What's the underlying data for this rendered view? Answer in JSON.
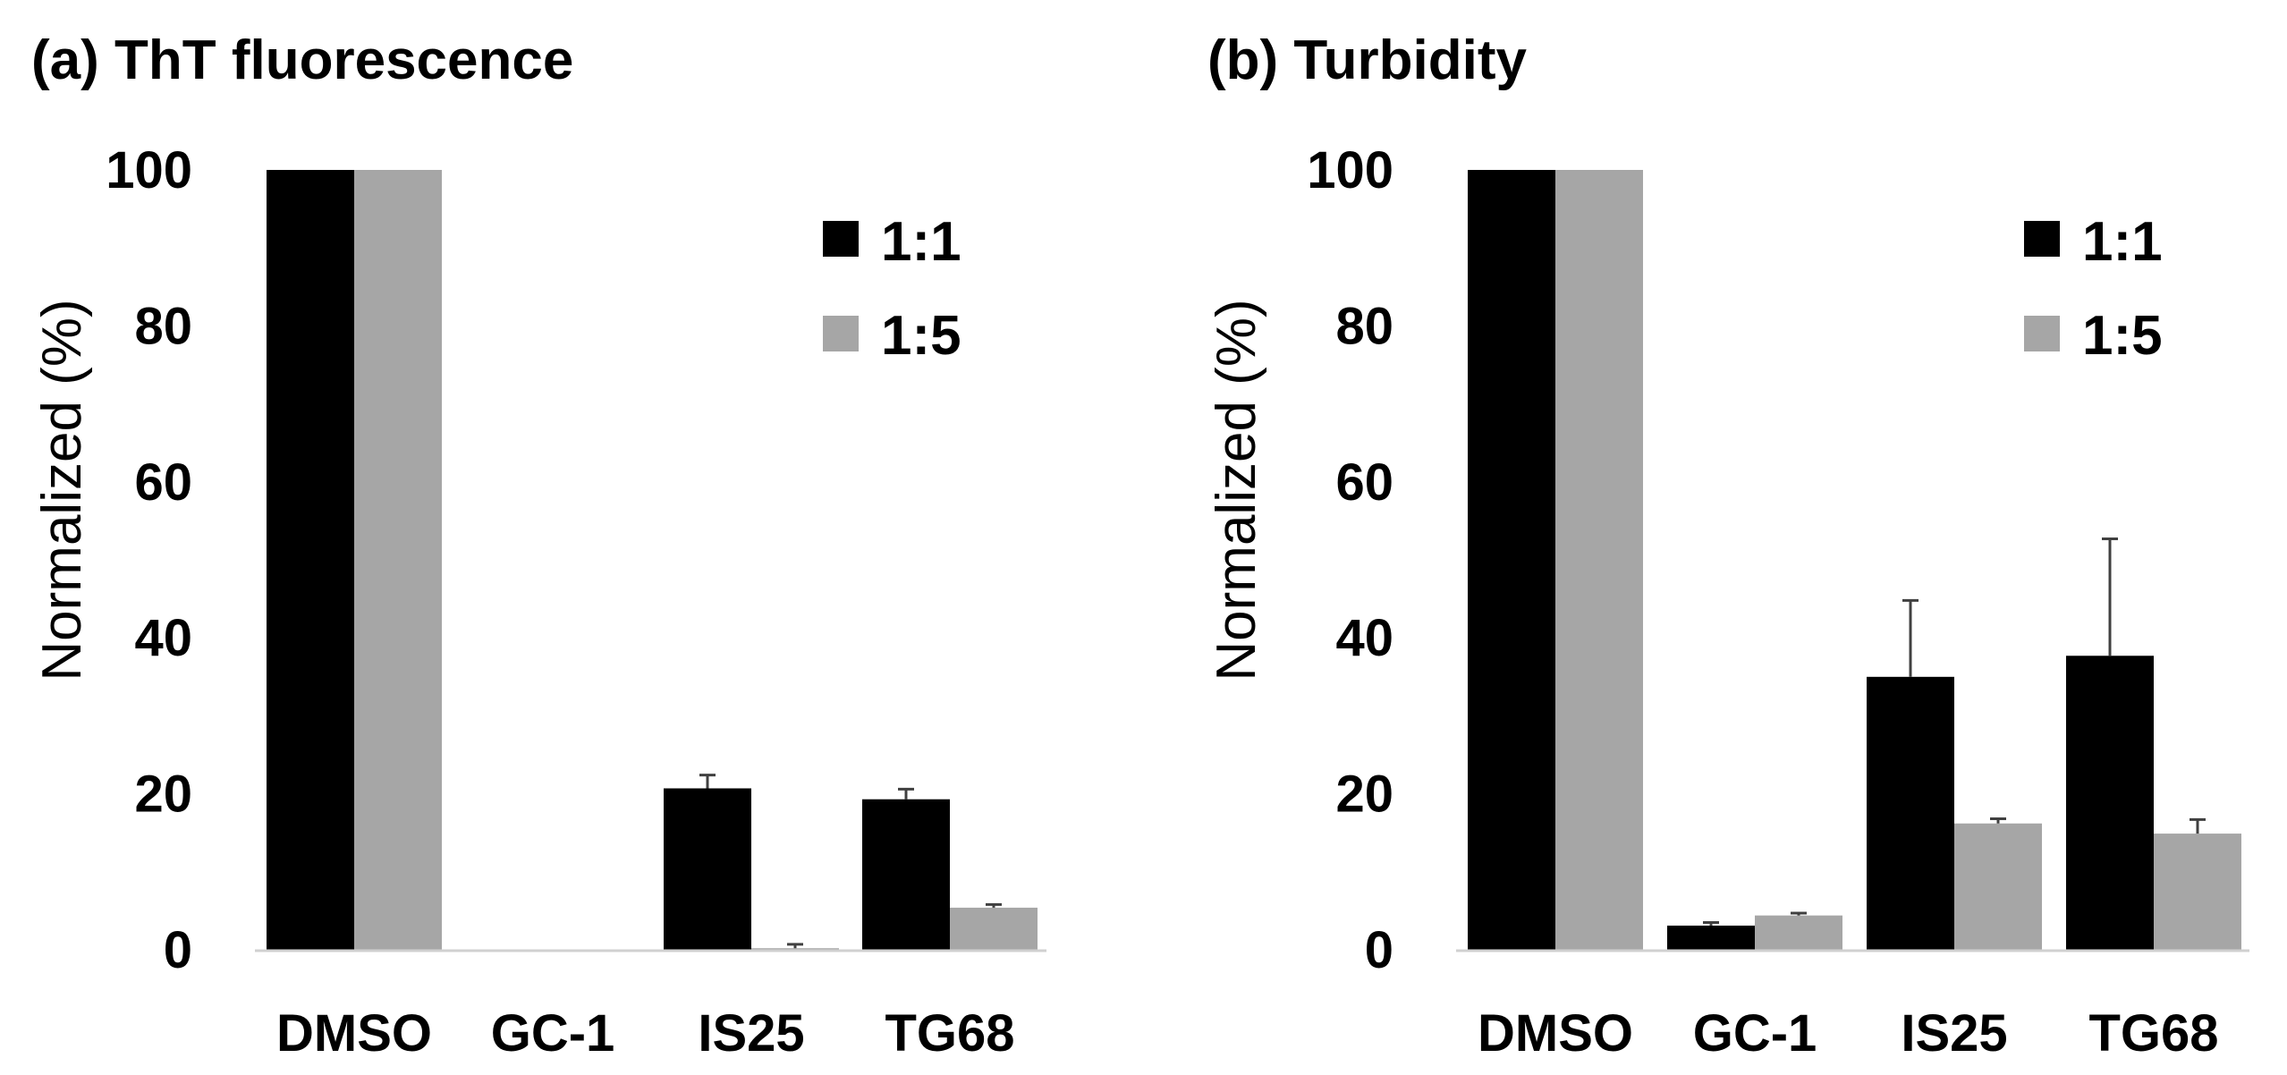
{
  "colors": {
    "series_1": "#000000",
    "series_2": "#a6a6a6",
    "axis": "#d0d0d0",
    "error_bar": "#404040"
  },
  "chart_data": [
    {
      "type": "bar",
      "title": "(a) ThT fluorescence",
      "xlabel": "",
      "ylabel": "Normalized (%)",
      "ylim": [
        0,
        100
      ],
      "yticks": [
        "0",
        "20",
        "40",
        "60",
        "80",
        "100"
      ],
      "categories": [
        "DMSO",
        "GC-1",
        "IS25",
        "TG68"
      ],
      "legend": "top-right",
      "grid": false,
      "series": [
        {
          "name": "1:1",
          "values": [
            100,
            0,
            20.7,
            19.3
          ],
          "errors": [
            0,
            0,
            1.7,
            1.3
          ]
        },
        {
          "name": "1:5",
          "values": [
            100,
            0,
            0.2,
            5.4
          ],
          "errors": [
            0,
            0,
            0.5,
            0.4
          ]
        }
      ]
    },
    {
      "type": "bar",
      "title": "(b) Turbidity",
      "xlabel": "",
      "ylabel": "Normalized (%)",
      "ylim": [
        0,
        100
      ],
      "yticks": [
        "0",
        "20",
        "40",
        "60",
        "80",
        "100"
      ],
      "categories": [
        "DMSO",
        "GC-1",
        "IS25",
        "TG68"
      ],
      "legend": "top-right",
      "grid": false,
      "series": [
        {
          "name": "1:1",
          "values": [
            100,
            3.1,
            35.0,
            37.7
          ],
          "errors": [
            0,
            0.4,
            9.8,
            15.0
          ]
        },
        {
          "name": "1:5",
          "values": [
            100,
            4.4,
            16.2,
            14.9
          ],
          "errors": [
            0,
            0.3,
            0.6,
            1.8
          ]
        }
      ]
    }
  ]
}
